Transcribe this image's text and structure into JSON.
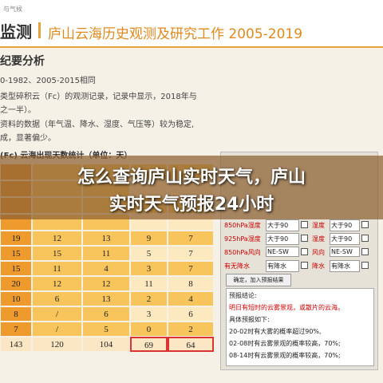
{
  "header": {
    "site": "与气候",
    "logo": "监测",
    "title": "庐山云海历史观测及研究工作 2005-2019"
  },
  "section": {
    "heading": "纪要分析",
    "lines": [
      "0-1982、2005-2015相同",
      "类型碎积云（Fc）的观测记录，记录中显示，2018年与",
      "之一半）。",
      "资料的数据（年气温、降水、湿度、气压等）较为稳定,",
      "成，显著偏少。"
    ]
  },
  "table": {
    "caption": "(Fc) 云海出现天数统计（单位：天）",
    "rows": [
      [
        "19",
        "12",
        "13",
        "9",
        "7"
      ],
      [
        "15",
        "15",
        "11",
        "5",
        "7"
      ],
      [
        "15",
        "11",
        "4",
        "3",
        "7"
      ],
      [
        "20",
        "12",
        "12",
        "11",
        "8"
      ],
      [
        "10",
        "6",
        "13",
        "2",
        "4"
      ],
      [
        "8",
        "/",
        "6",
        "3",
        "6"
      ],
      [
        "7",
        "/",
        "5",
        "0",
        "2"
      ],
      [
        "143",
        "120",
        "104",
        "69",
        "64"
      ]
    ]
  },
  "banner": {
    "lines": [
      "怎么查询庐山实时天气，庐山",
      "实时天气预报24小时"
    ]
  },
  "panel": {
    "rows": [
      [
        "850hPa湿度",
        "大于90",
        "湿度",
        "大于90"
      ],
      [
        "925hPa湿度",
        "大于90",
        "湿度",
        "大于90"
      ],
      [
        "850hPa风向",
        "NE-SW",
        "风向",
        "NE-SW"
      ],
      [
        "有无降水",
        "有降水",
        "降水",
        "有降水"
      ]
    ],
    "button": "确定，加入预报结果",
    "result": [
      "预报结论:",
      "明日有短时的云雾景观，或散片的云海。",
      "具体预报如下:",
      "20-02时有大雾的概率超过90%,",
      "02-08时有云雾景观的概率较高，70%;",
      "08-14时有云雾景观的概率较高，70%;"
    ]
  }
}
